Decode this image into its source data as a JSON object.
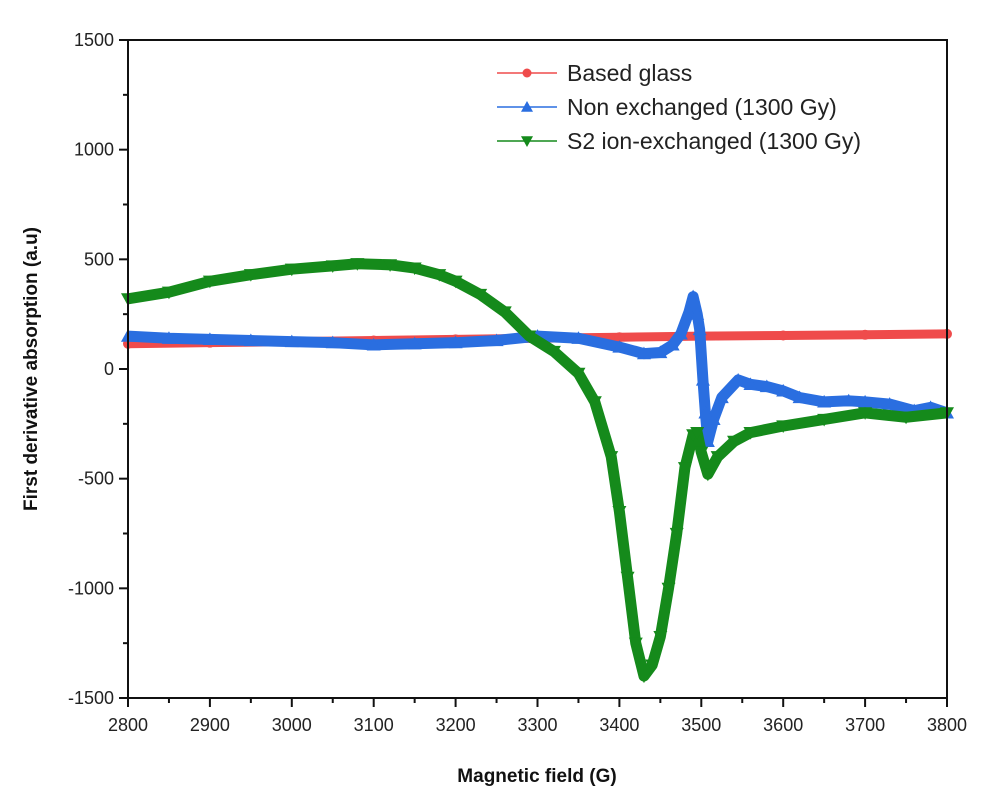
{
  "chart_data": {
    "type": "scatter",
    "xlabel": "Magnetic field (G)",
    "ylabel": "First derivative absorption (a.u)",
    "xlim": [
      2800,
      3800
    ],
    "ylim": [
      -1500,
      1500
    ],
    "xticks": [
      2800,
      2900,
      3000,
      3100,
      3200,
      3300,
      3400,
      3500,
      3600,
      3700,
      3800
    ],
    "yticks": [
      -1500,
      -1000,
      -500,
      0,
      500,
      1000,
      1500
    ],
    "grid": false,
    "legend_position": "top-right",
    "series": [
      {
        "name": "Based glass",
        "color": "#ef4b4b",
        "marker": "circle",
        "x": [
          2800,
          2900,
          3000,
          3100,
          3200,
          3300,
          3400,
          3500,
          3600,
          3700,
          3800
        ],
        "y": [
          115,
          120,
          125,
          130,
          135,
          140,
          145,
          150,
          153,
          156,
          160
        ]
      },
      {
        "name": "Non exchanged (1300 Gy)",
        "color": "#2a6ee0",
        "marker": "triangle-up",
        "x": [
          2800,
          2850,
          2900,
          2950,
          3000,
          3050,
          3100,
          3150,
          3200,
          3250,
          3300,
          3350,
          3400,
          3430,
          3450,
          3465,
          3475,
          3485,
          3490,
          3495,
          3498,
          3502,
          3505,
          3508,
          3515,
          3525,
          3545,
          3560,
          3580,
          3600,
          3620,
          3650,
          3680,
          3700,
          3730,
          3760,
          3780,
          3800
        ],
        "y": [
          150,
          140,
          135,
          130,
          125,
          120,
          110,
          115,
          120,
          130,
          150,
          140,
          100,
          70,
          75,
          110,
          160,
          260,
          330,
          250,
          180,
          -50,
          -200,
          -330,
          -230,
          -130,
          -50,
          -70,
          -80,
          -100,
          -130,
          -150,
          -145,
          -150,
          -160,
          -190,
          -175,
          -200
        ]
      },
      {
        "name": "S2 ion-exchanged (1300 Gy)",
        "color": "#158a1b",
        "marker": "triangle-down",
        "x": [
          2800,
          2850,
          2900,
          2950,
          3000,
          3050,
          3080,
          3120,
          3150,
          3180,
          3200,
          3230,
          3260,
          3290,
          3320,
          3350,
          3370,
          3390,
          3400,
          3410,
          3420,
          3430,
          3440,
          3450,
          3460,
          3470,
          3480,
          3490,
          3495,
          3500,
          3508,
          3520,
          3540,
          3560,
          3600,
          3650,
          3700,
          3750,
          3800
        ],
        "y": [
          320,
          350,
          400,
          430,
          455,
          470,
          480,
          475,
          460,
          430,
          400,
          340,
          260,
          150,
          80,
          -20,
          -150,
          -400,
          -650,
          -950,
          -1250,
          -1400,
          -1350,
          -1220,
          -1000,
          -750,
          -450,
          -300,
          -290,
          -380,
          -480,
          -400,
          -330,
          -290,
          -260,
          -230,
          -200,
          -220,
          -200
        ]
      }
    ]
  }
}
